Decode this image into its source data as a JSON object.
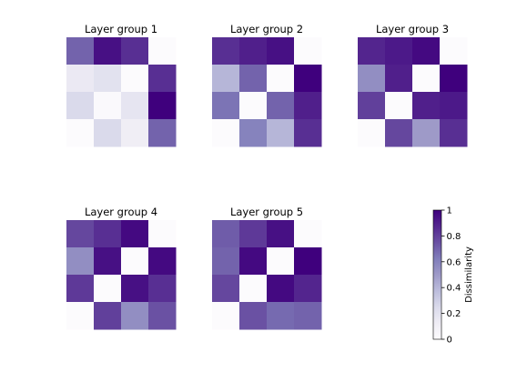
{
  "chart_data": {
    "type": "heatmap",
    "colormap": [
      "#fcfbfd",
      "#efedf5",
      "#dadaeb",
      "#bcbddc",
      "#9e9ac8",
      "#807dba",
      "#6a51a3",
      "#54278f",
      "#3f007d"
    ],
    "panels": [
      {
        "title": "Layer group 1",
        "matrix": [
          [
            0.7,
            0.95,
            0.85,
            0.0
          ],
          [
            0.15,
            0.2,
            0.0,
            0.85
          ],
          [
            0.25,
            0.02,
            0.18,
            1.0
          ],
          [
            0.0,
            0.25,
            0.12,
            0.7
          ]
        ]
      },
      {
        "title": "Layer group 2",
        "matrix": [
          [
            0.85,
            0.9,
            0.95,
            0.0
          ],
          [
            0.4,
            0.7,
            0.0,
            1.0
          ],
          [
            0.65,
            0.0,
            0.7,
            0.9
          ],
          [
            0.0,
            0.6,
            0.4,
            0.85
          ]
        ]
      },
      {
        "title": "Layer group 3",
        "matrix": [
          [
            0.88,
            0.92,
            0.97,
            0.0
          ],
          [
            0.55,
            0.9,
            0.0,
            1.0
          ],
          [
            0.8,
            0.0,
            0.9,
            0.92
          ],
          [
            0.0,
            0.78,
            0.5,
            0.85
          ]
        ]
      },
      {
        "title": "Layer group 4",
        "matrix": [
          [
            0.78,
            0.85,
            0.97,
            0.0
          ],
          [
            0.55,
            0.95,
            0.0,
            0.97
          ],
          [
            0.82,
            0.0,
            0.95,
            0.85
          ],
          [
            0.0,
            0.8,
            0.55,
            0.75
          ]
        ]
      },
      {
        "title": "Layer group 5",
        "matrix": [
          [
            0.72,
            0.82,
            0.95,
            0.0
          ],
          [
            0.7,
            0.97,
            0.0,
            1.0
          ],
          [
            0.78,
            0.0,
            0.97,
            0.88
          ],
          [
            0.0,
            0.75,
            0.68,
            0.7
          ]
        ]
      }
    ],
    "colorbar": {
      "label": "Dissimilarity",
      "range": [
        0,
        1
      ],
      "ticks": [
        "0",
        "0.2",
        "0.4",
        "0.6",
        "0.8",
        "1"
      ]
    }
  }
}
